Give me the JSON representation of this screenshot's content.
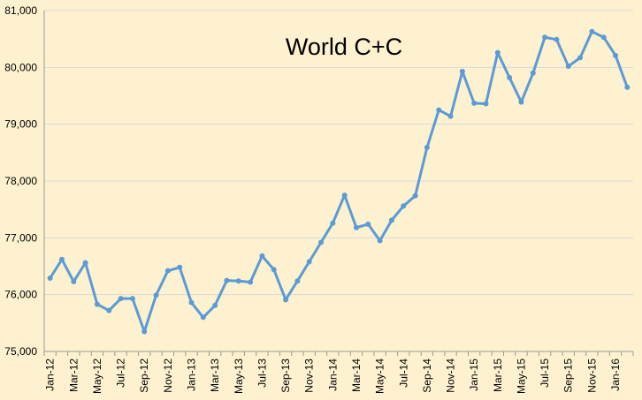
{
  "chart_data": {
    "type": "line",
    "title": "World C+C",
    "xlabel": "",
    "ylabel": "",
    "ylim": [
      75000,
      81000
    ],
    "yticks": [
      "75,000",
      "76,000",
      "77,000",
      "78,000",
      "79,000",
      "80,000",
      "81,000"
    ],
    "grid": true,
    "legend": "none",
    "line_color": "#5b9bd5",
    "background_color": "#fdf1cf",
    "x": [
      "Jan-12",
      "Feb-12",
      "Mar-12",
      "Apr-12",
      "May-12",
      "Jun-12",
      "Jul-12",
      "Aug-12",
      "Sep-12",
      "Oct-12",
      "Nov-12",
      "Dec-12",
      "Jan-13",
      "Feb-13",
      "Mar-13",
      "Apr-13",
      "May-13",
      "Jun-13",
      "Jul-13",
      "Aug-13",
      "Sep-13",
      "Oct-13",
      "Nov-13",
      "Dec-13",
      "Jan-14",
      "Feb-14",
      "Mar-14",
      "Apr-14",
      "May-14",
      "Jun-14",
      "Jul-14",
      "Aug-14",
      "Sep-14",
      "Oct-14",
      "Nov-14",
      "Dec-14",
      "Jan-15",
      "Feb-15",
      "Mar-15",
      "Apr-15",
      "May-15",
      "Jun-15",
      "Jul-15",
      "Aug-15",
      "Sep-15",
      "Oct-15",
      "Nov-15",
      "Dec-15",
      "Jan-16",
      "Feb-16"
    ],
    "xtick_labels": [
      "Jan-12",
      "Mar-12",
      "May-12",
      "Jul-12",
      "Sep-12",
      "Nov-12",
      "Jan-13",
      "Mar-13",
      "May-13",
      "Jul-13",
      "Sep-13",
      "Nov-13",
      "Jan-14",
      "Mar-14",
      "May-14",
      "Jul-14",
      "Sep-14",
      "Nov-14",
      "Jan-15",
      "Mar-15",
      "May-15",
      "Jul-15",
      "Sep-15",
      "Nov-15",
      "Jan-16"
    ],
    "series": [
      {
        "values": [
          76290,
          76620,
          76230,
          76560,
          75830,
          75720,
          75930,
          75930,
          75350,
          75990,
          76420,
          76480,
          75860,
          75600,
          75810,
          76250,
          76240,
          76220,
          76680,
          76440,
          75910,
          76240,
          76580,
          76920,
          77260,
          77750,
          77180,
          77240,
          76950,
          77310,
          77560,
          77740,
          78590,
          79250,
          79140,
          79930,
          79370,
          79360,
          80260,
          79820,
          79390,
          79900,
          80530,
          80490,
          80020,
          80170,
          80630,
          80530,
          80210,
          79650
        ]
      }
    ]
  }
}
